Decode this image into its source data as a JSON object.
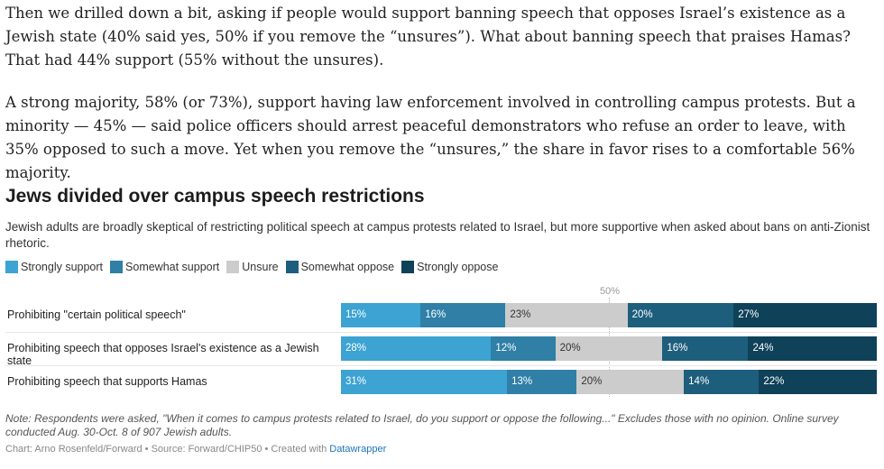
{
  "article": {
    "paragraphs": [
      "Then we drilled down a bit, asking if people would support banning speech that opposes Israel’s existence as a Jewish state (40% said yes, 50% if you remove the “unsures”). What about banning speech that praises Hamas? That had 44% support (55% without the unsures).",
      "A strong majority, 58% (or 73%), support having law enforcement involved in controlling campus protests. But a minority — 45% — said police officers should arrest peaceful demonstrators who refuse an order to leave, with 35% opposed to such a move. Yet when you remove the “unsures,” the share in favor rises to a comfortable 56% majority."
    ]
  },
  "chart_data": {
    "type": "bar",
    "orientation": "horizontal-stacked",
    "title": "Jews divided over campus speech restrictions",
    "description": "Jewish adults are broadly skeptical of restricting political speech at campus protests related to Israel, but more supportive when asked about bans on anti-Zionist rhetoric.",
    "marker_label": "50%",
    "categories": [
      "Prohibiting \"certain political speech\"",
      "Prohibiting speech that opposes Israel's existence as a Jewish state",
      "Prohibiting speech that supports Hamas"
    ],
    "series": [
      {
        "name": "Strongly support",
        "color": "#3ca3d2",
        "text_color": "#ffffff",
        "values": [
          15,
          28,
          31
        ]
      },
      {
        "name": "Somewhat support",
        "color": "#2f7fa6",
        "text_color": "#ffffff",
        "values": [
          16,
          12,
          13
        ]
      },
      {
        "name": "Unsure",
        "color": "#cccccc",
        "text_color": "#333333",
        "values": [
          23,
          20,
          20
        ]
      },
      {
        "name": "Somewhat oppose",
        "color": "#1e5e7d",
        "text_color": "#ffffff",
        "values": [
          20,
          16,
          14
        ]
      },
      {
        "name": "Strongly oppose",
        "color": "#0f4159",
        "text_color": "#ffffff",
        "values": [
          27,
          24,
          22
        ]
      }
    ],
    "note": "Note: Respondents were asked, \"When it comes to campus protests related to Israel, do you support or oppose the following...\" Excludes those with no opinion. Online survey conducted Aug. 30-Oct. 8 of 907 Jewish adults.",
    "credit_text": "Chart: Arno Rosenfeld/Forward • Source: Forward/CHIP50 • Created with ",
    "credit_link": "Datawrapper"
  }
}
